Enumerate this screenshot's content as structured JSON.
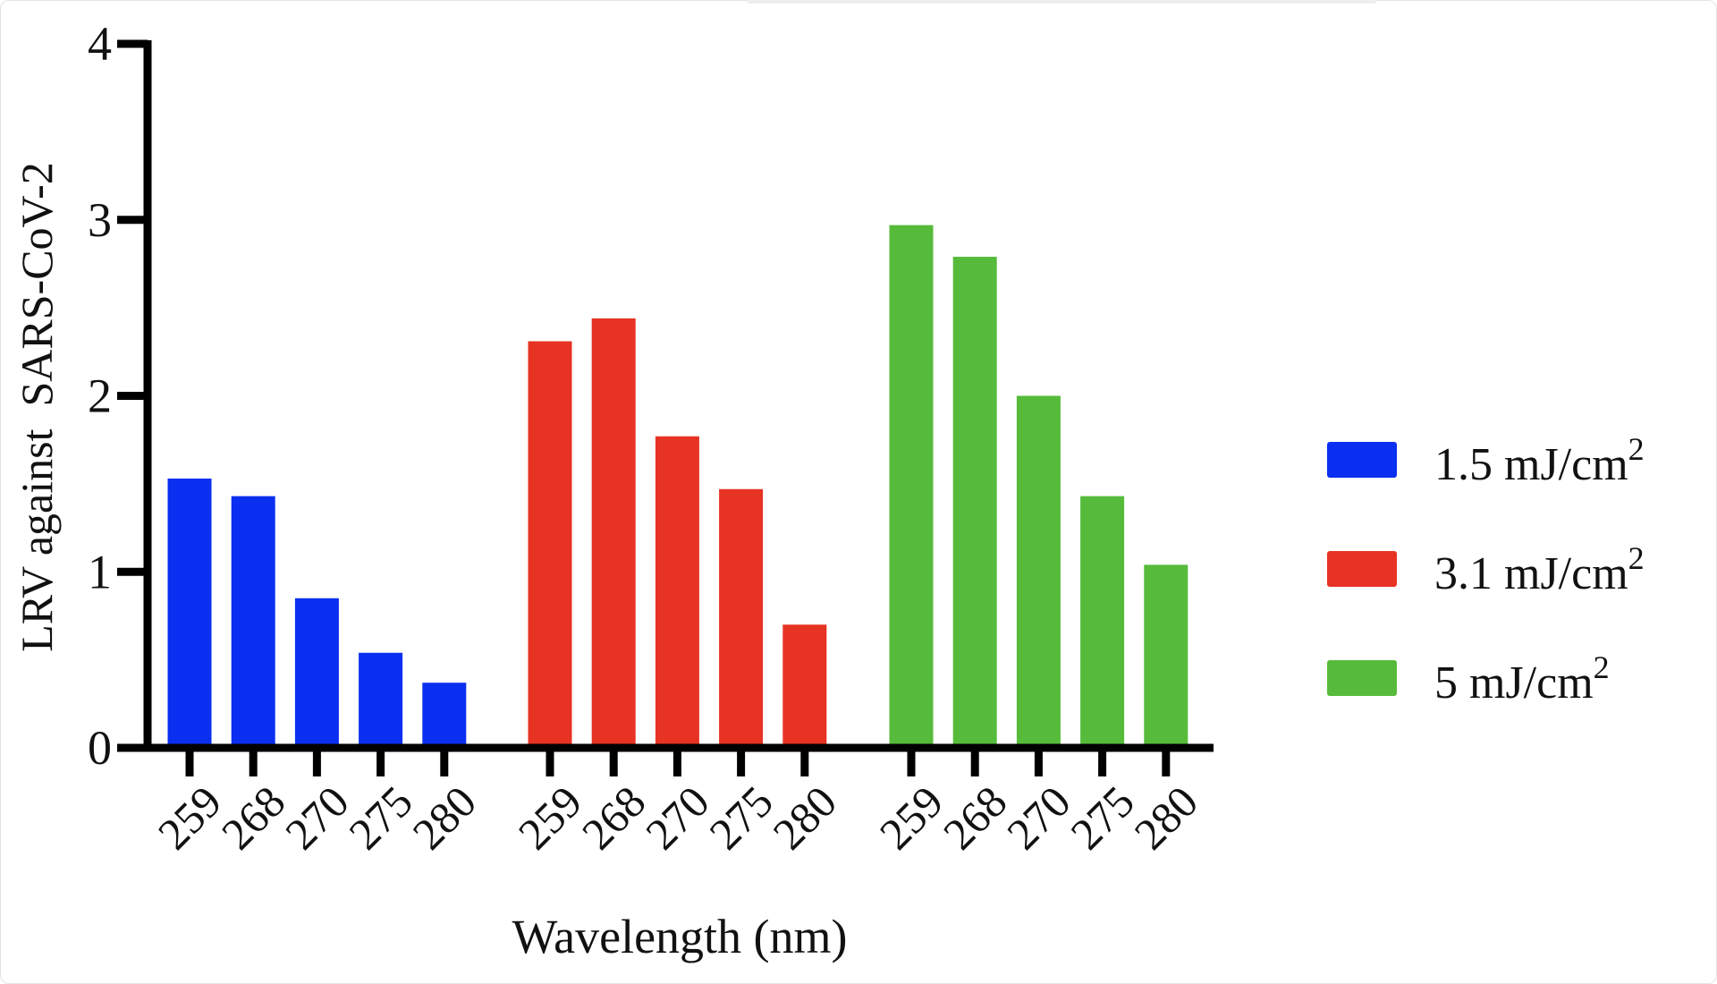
{
  "chart_data": {
    "type": "bar",
    "xlabel": "Wavelength (nm)",
    "ylabel": "LRV against  SARS-CoV-2",
    "ylim": [
      0,
      4
    ],
    "yticks": [
      "0",
      "1",
      "2",
      "3",
      "4"
    ],
    "categories": [
      "259",
      "268",
      "270",
      "275",
      "280"
    ],
    "grid": false,
    "legend_position": "right",
    "series": [
      {
        "name": "1.5 mJ/cm",
        "sup": "2",
        "color": "#0a2ff0",
        "values": [
          1.53,
          1.43,
          0.85,
          0.54,
          0.37
        ]
      },
      {
        "name": "3.1 mJ/cm",
        "sup": "2",
        "color": "#e63323",
        "values": [
          2.31,
          2.44,
          1.77,
          1.47,
          0.7
        ]
      },
      {
        "name": "5 mJ/cm",
        "sup": "2",
        "color": "#56bb3a",
        "values": [
          2.97,
          2.79,
          2.0,
          1.43,
          1.04
        ]
      }
    ]
  }
}
